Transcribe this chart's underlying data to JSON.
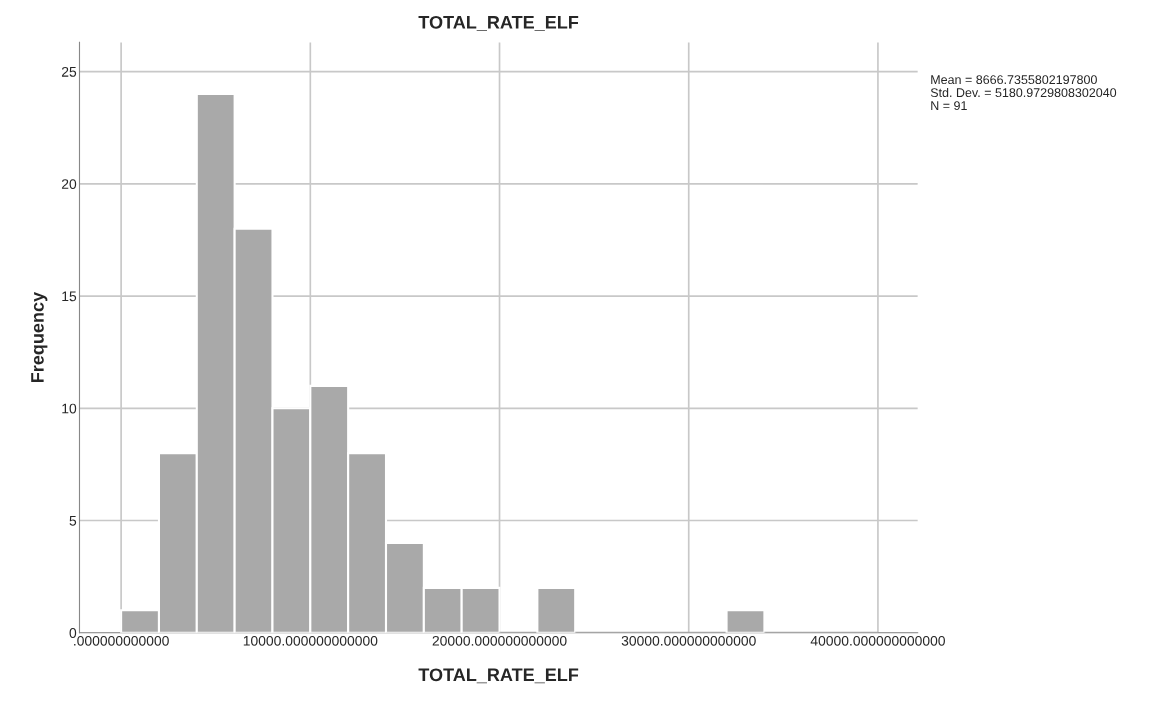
{
  "chart_data": {
    "type": "histogram",
    "title": "TOTAL_RATE_ELF",
    "xlabel": "TOTAL_RATE_ELF",
    "ylabel": "Frequency",
    "bins": [
      0,
      2000,
      4000,
      6000,
      8000,
      10000,
      12000,
      14000,
      16000,
      18000,
      20000,
      22000,
      24000,
      26000,
      28000,
      30000,
      32000,
      34000,
      36000,
      38000,
      40000
    ],
    "values": [
      1,
      8,
      24,
      18,
      10,
      11,
      8,
      4,
      2,
      2,
      0,
      2,
      0,
      0,
      0,
      0,
      1,
      0,
      0,
      0
    ],
    "color": "#a9a9a9",
    "xlim": [
      -2200,
      42100
    ],
    "ylim": [
      0,
      26.3
    ],
    "xticks": [
      {
        "value": 0,
        "label": ".000000000000"
      },
      {
        "value": 10000,
        "label": "10000.000000000000"
      },
      {
        "value": 20000,
        "label": "20000.000000000000"
      },
      {
        "value": 30000,
        "label": "30000.000000000000"
      },
      {
        "value": 40000,
        "label": "40000.000000000000"
      }
    ],
    "yticks": [
      0,
      5,
      10,
      15,
      20,
      25
    ],
    "grid": true,
    "annotations": [
      "Mean = 8666.7355802197800",
      "Std. Dev. = 5180.9729808302040",
      "N = 91"
    ]
  }
}
